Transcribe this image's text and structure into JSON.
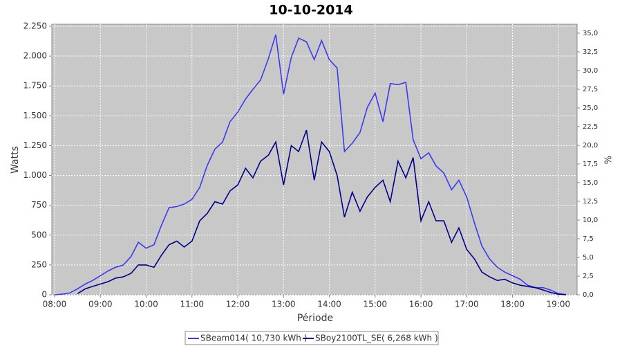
{
  "chart_data": {
    "type": "line",
    "title": "10-10-2014",
    "x_label": "Période",
    "y_label": "Watts",
    "y2_label": "%",
    "x": [
      8,
      8.17,
      8.33,
      8.5,
      8.67,
      8.83,
      9,
      9.17,
      9.33,
      9.5,
      9.67,
      9.83,
      10,
      10.17,
      10.33,
      10.5,
      10.67,
      10.83,
      11,
      11.17,
      11.33,
      11.5,
      11.67,
      11.83,
      12,
      12.17,
      12.33,
      12.5,
      12.67,
      12.83,
      13,
      13.17,
      13.33,
      13.5,
      13.67,
      13.83,
      14,
      14.17,
      14.33,
      14.5,
      14.67,
      14.83,
      15,
      15.17,
      15.33,
      15.5,
      15.67,
      15.83,
      16,
      16.17,
      16.33,
      16.5,
      16.67,
      16.83,
      17,
      17.17,
      17.33,
      17.5,
      17.67,
      17.83,
      18,
      18.17,
      18.33,
      18.5,
      18.67,
      18.83,
      19,
      19.17
    ],
    "series": [
      {
        "name": "SBeam014( 10,730 kWh )",
        "color": "#3a3af0",
        "values": [
          0,
          5,
          15,
          50,
          90,
          120,
          160,
          200,
          230,
          250,
          320,
          440,
          390,
          420,
          580,
          730,
          740,
          760,
          800,
          900,
          1080,
          1220,
          1280,
          1450,
          1530,
          1640,
          1720,
          1800,
          1980,
          2180,
          1680,
          1990,
          2150,
          2120,
          1970,
          2130,
          1970,
          1900,
          1200,
          1270,
          1360,
          1570,
          1690,
          1450,
          1770,
          1760,
          1780,
          1300,
          1140,
          1190,
          1080,
          1020,
          880,
          960,
          820,
          600,
          410,
          300,
          230,
          190,
          160,
          130,
          80,
          60,
          60,
          40,
          10,
          2
        ]
      },
      {
        "name": "SBoy2100TL_SE( 6,268 kWh )",
        "color": "#00008b",
        "values": [
          null,
          null,
          null,
          10,
          50,
          70,
          90,
          110,
          140,
          150,
          180,
          250,
          250,
          230,
          330,
          420,
          450,
          400,
          450,
          620,
          680,
          780,
          760,
          870,
          920,
          1060,
          980,
          1120,
          1170,
          1280,
          920,
          1250,
          1200,
          1380,
          960,
          1280,
          1200,
          1000,
          650,
          860,
          700,
          820,
          900,
          960,
          780,
          1120,
          980,
          1150,
          620,
          780,
          620,
          620,
          440,
          560,
          380,
          300,
          190,
          150,
          120,
          130,
          100,
          80,
          70,
          60,
          40,
          20,
          5,
          0
        ]
      }
    ],
    "xlim": [
      7.94,
      19.41
    ],
    "xticks": [
      {
        "value": 8,
        "label": "08:00"
      },
      {
        "value": 9,
        "label": "09:00"
      },
      {
        "value": 10,
        "label": "10:00"
      },
      {
        "value": 11,
        "label": "11:00"
      },
      {
        "value": 12,
        "label": "12:00"
      },
      {
        "value": 13,
        "label": "13:00"
      },
      {
        "value": 14,
        "label": "14:00"
      },
      {
        "value": 15,
        "label": "15:00"
      },
      {
        "value": 16,
        "label": "16:00"
      },
      {
        "value": 17,
        "label": "17:00"
      },
      {
        "value": 18,
        "label": "18:00"
      },
      {
        "value": 19,
        "label": "19:00"
      }
    ],
    "ylim": [
      0,
      2267
    ],
    "yticks": [
      0,
      250,
      500,
      750,
      {
        "value": 1000,
        "label": "1.000"
      },
      {
        "value": 1250,
        "label": "1.250"
      },
      {
        "value": 1500,
        "label": "1.500"
      },
      {
        "value": 1750,
        "label": "1.750"
      },
      {
        "value": 2000,
        "label": "2.000"
      },
      {
        "value": 2250,
        "label": "2.250"
      }
    ],
    "y2lim": [
      0,
      36.2
    ],
    "y2ticks": [
      {
        "value": 0,
        "label": "0,0"
      },
      {
        "value": 2.5,
        "label": "2,5"
      },
      {
        "value": 5,
        "label": "5,0"
      },
      {
        "value": 7.5,
        "label": "7,5"
      },
      {
        "value": 10,
        "label": "10,0"
      },
      {
        "value": 12.5,
        "label": "12,5"
      },
      {
        "value": 15,
        "label": "15,0"
      },
      {
        "value": 17.5,
        "label": "17,5"
      },
      {
        "value": 20,
        "label": "20,0"
      },
      {
        "value": 22.5,
        "label": "22,5"
      },
      {
        "value": 25,
        "label": "25,0"
      },
      {
        "value": 27.5,
        "label": "27,5"
      },
      {
        "value": 30,
        "label": "30,0"
      },
      {
        "value": 32.5,
        "label": "32,5"
      },
      {
        "value": 35,
        "label": "35,0"
      }
    ],
    "grid": true,
    "plot_background": "#c8c8c8",
    "legend": "bottom"
  }
}
